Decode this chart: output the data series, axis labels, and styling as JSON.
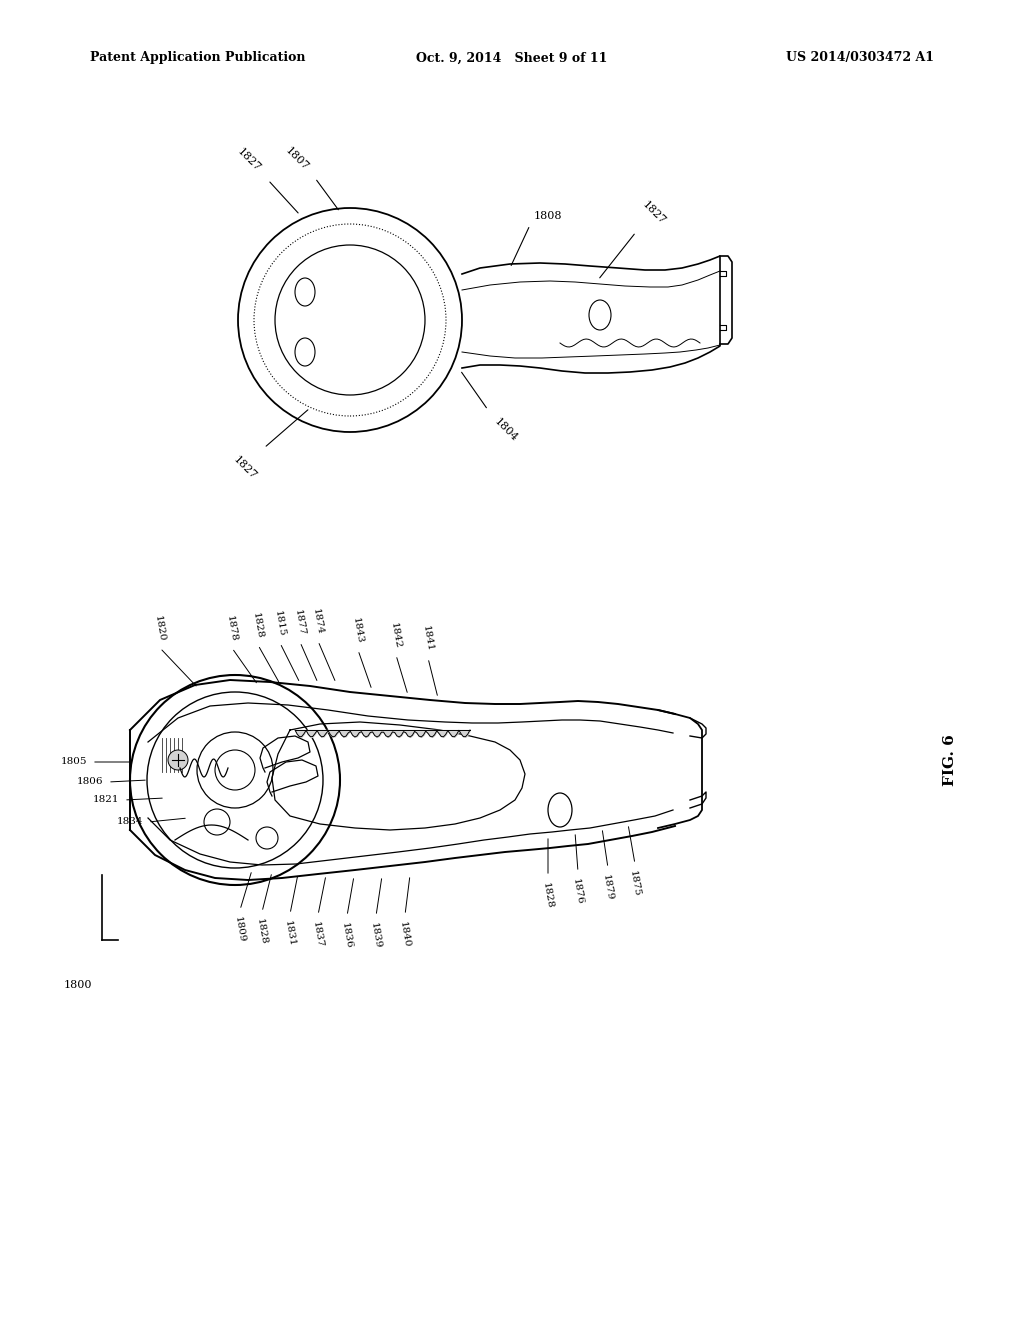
{
  "background_color": "#ffffff",
  "header_left": "Patent Application Publication",
  "header_center": "Oct. 9, 2014   Sheet 9 of 11",
  "header_right": "US 2014/0303472 A1",
  "fig_label": "FIG. 6"
}
